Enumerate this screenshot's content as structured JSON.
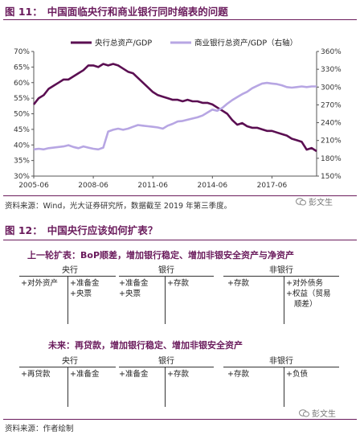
{
  "fig11": {
    "label": "图 11：",
    "title": "中国面临央行和商业银行同时缩表的问题"
  },
  "chart_data": {
    "type": "line",
    "title": "",
    "x_ticks": [
      "2005-06",
      "2008-06",
      "2011-06",
      "2014-06",
      "2017-06"
    ],
    "x_range": [
      "2005-06",
      "2019-09"
    ],
    "ylim_left": [
      30,
      70
    ],
    "ylim_right": [
      150,
      360
    ],
    "left_ticks": [
      "30%",
      "35%",
      "40%",
      "45%",
      "50%",
      "55%",
      "60%",
      "65%",
      "70%"
    ],
    "right_ticks": [
      "150%",
      "180%",
      "210%",
      "240%",
      "270%",
      "300%",
      "330%",
      "360%"
    ],
    "grid": false,
    "legend_position": "top",
    "series": [
      {
        "name": "央行总资产/GDP",
        "axis": "left",
        "color": "#5b0f52",
        "x": [
          "2005-06",
          "2005-09",
          "2005-12",
          "2006-03",
          "2006-06",
          "2006-09",
          "2006-12",
          "2007-03",
          "2007-06",
          "2007-09",
          "2007-12",
          "2008-03",
          "2008-06",
          "2008-09",
          "2008-12",
          "2009-03",
          "2009-06",
          "2009-09",
          "2009-12",
          "2010-03",
          "2010-06",
          "2010-09",
          "2010-12",
          "2011-03",
          "2011-06",
          "2011-09",
          "2011-12",
          "2012-03",
          "2012-06",
          "2012-09",
          "2012-12",
          "2013-03",
          "2013-06",
          "2013-09",
          "2013-12",
          "2014-03",
          "2014-06",
          "2014-09",
          "2014-12",
          "2015-03",
          "2015-06",
          "2015-09",
          "2015-12",
          "2016-03",
          "2016-06",
          "2016-09",
          "2016-12",
          "2017-03",
          "2017-06",
          "2017-09",
          "2017-12",
          "2018-03",
          "2018-06",
          "2018-09",
          "2018-12",
          "2019-03",
          "2019-06",
          "2019-09"
        ],
        "values": [
          53,
          55,
          56,
          58,
          59,
          60,
          61,
          61,
          62,
          63,
          64,
          65.5,
          65.5,
          65,
          66,
          65.5,
          66,
          65.5,
          64.5,
          63.5,
          63,
          61.5,
          60,
          58.5,
          57,
          56,
          55.5,
          55,
          54.5,
          54.5,
          54,
          54.5,
          54,
          54,
          53.5,
          53.5,
          53,
          52,
          51,
          50,
          48,
          46.5,
          47,
          46,
          45.5,
          45.5,
          45,
          44.5,
          44.5,
          44,
          43.5,
          43,
          42,
          41.5,
          41,
          38.5,
          39,
          38
        ]
      },
      {
        "name": "商业银行总资产/GDP（右轴）",
        "axis": "right",
        "color": "#b7a6e3",
        "x": [
          "2005-06",
          "2005-09",
          "2005-12",
          "2006-03",
          "2006-06",
          "2006-09",
          "2006-12",
          "2007-03",
          "2007-06",
          "2007-09",
          "2007-12",
          "2008-03",
          "2008-06",
          "2008-09",
          "2008-12",
          "2009-03",
          "2009-06",
          "2009-09",
          "2009-12",
          "2010-03",
          "2010-06",
          "2010-09",
          "2010-12",
          "2011-03",
          "2011-06",
          "2011-09",
          "2011-12",
          "2012-03",
          "2012-06",
          "2012-09",
          "2012-12",
          "2013-03",
          "2013-06",
          "2013-09",
          "2013-12",
          "2014-03",
          "2014-06",
          "2014-09",
          "2014-12",
          "2015-03",
          "2015-06",
          "2015-09",
          "2015-12",
          "2016-03",
          "2016-06",
          "2016-09",
          "2016-12",
          "2017-03",
          "2017-06",
          "2017-09",
          "2017-12",
          "2018-03",
          "2018-06",
          "2018-09",
          "2018-12",
          "2019-03",
          "2019-06",
          "2019-09"
        ],
        "values": [
          195,
          196,
          195,
          197,
          198,
          199,
          200,
          202,
          199,
          197,
          200,
          198,
          196,
          195,
          198,
          225,
          228,
          230,
          228,
          230,
          233,
          236,
          235,
          234,
          233,
          232,
          230,
          235,
          238,
          242,
          243,
          245,
          247,
          249,
          252,
          257,
          262,
          260,
          265,
          272,
          278,
          283,
          288,
          292,
          298,
          302,
          306,
          307,
          306,
          305,
          303,
          300,
          299,
          300,
          301,
          300,
          301,
          301
        ]
      }
    ]
  },
  "source1": "资料来源：Wind，光大证券研究所，数据截至 2019 年第三季度。",
  "watermark": "彭文生",
  "fig12": {
    "label": "图 12：",
    "title": "中国央行应该如何扩表？"
  },
  "fig12_content": {
    "section1": {
      "heading": "上一轮扩表：BoP顺差，增加银行稳定、增加非银安全资产与净资产",
      "cols": [
        "央行",
        "银行",
        "非银行"
      ],
      "cells": {
        "c1l": "+对外资产",
        "c1r": [
          "+准备金",
          "+央票"
        ],
        "c2l": [
          "+准备金",
          "+央票"
        ],
        "c2r": "+存款",
        "c3l": "+存款",
        "c3r": [
          "+对外债务",
          "+权益（贸易",
          "顺差）"
        ]
      }
    },
    "section2": {
      "heading": "未来：再贷款，增加银行稳定、增加非银安全资产",
      "cols": [
        "央行",
        "银行",
        "非银行"
      ],
      "cells": {
        "c1l": "+再贷款",
        "c1r": "+准备金",
        "c2l": "+准备金",
        "c2r": "+存款",
        "c3l": "+存款",
        "c3r": "+负债"
      }
    }
  },
  "source2": "资料来源：作者绘制"
}
